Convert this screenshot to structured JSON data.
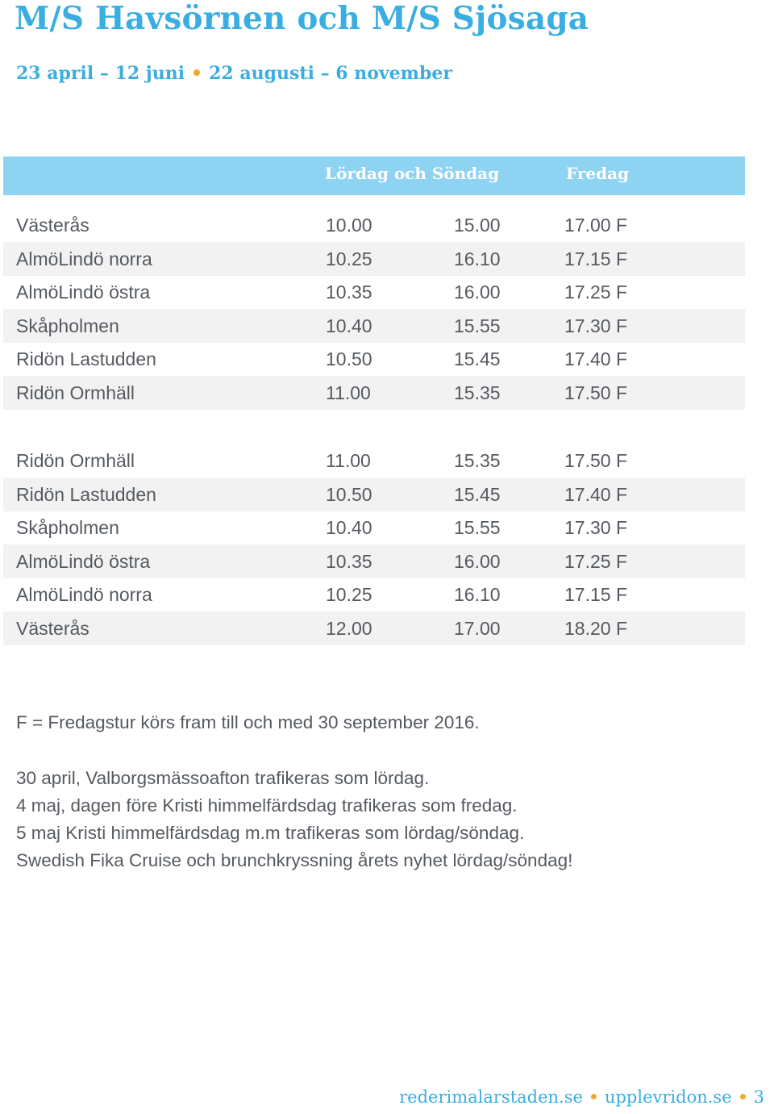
{
  "title": "M/S Havsörnen och M/S Sjösaga",
  "periods": [
    "23 april – 12 juni",
    "22 augusti – 6 november"
  ],
  "table": {
    "headers": {
      "weekend": "Lördag och Söndag",
      "friday": "Fredag"
    },
    "outbound": [
      {
        "stop": "Västerås",
        "t1": "10.00",
        "t2": "15.00",
        "t3": "17.00 F"
      },
      {
        "stop": "AlmöLindö norra",
        "t1": "10.25",
        "t2": "16.10",
        "t3": "17.15 F"
      },
      {
        "stop": "AlmöLindö östra",
        "t1": "10.35",
        "t2": "16.00",
        "t3": "17.25 F"
      },
      {
        "stop": "Skåpholmen",
        "t1": "10.40",
        "t2": "15.55",
        "t3": "17.30 F"
      },
      {
        "stop": "Ridön Lastudden",
        "t1": "10.50",
        "t2": "15.45",
        "t3": "17.40 F"
      },
      {
        "stop": "Ridön Ormhäll",
        "t1": "11.00",
        "t2": "15.35",
        "t3": "17.50 F"
      }
    ],
    "return": [
      {
        "stop": "Ridön Ormhäll",
        "t1": "11.00",
        "t2": "15.35",
        "t3": "17.50 F"
      },
      {
        "stop": "Ridön Lastudden",
        "t1": "10.50",
        "t2": "15.45",
        "t3": "17.40 F"
      },
      {
        "stop": "Skåpholmen",
        "t1": "10.40",
        "t2": "15.55",
        "t3": "17.30 F"
      },
      {
        "stop": "AlmöLindö östra",
        "t1": "10.35",
        "t2": "16.00",
        "t3": "17.25 F"
      },
      {
        "stop": "AlmöLindö norra",
        "t1": "10.25",
        "t2": "16.10",
        "t3": "17.15 F"
      },
      {
        "stop": "Västerås",
        "t1": "12.00",
        "t2": "17.00",
        "t3": "18.20 F"
      }
    ]
  },
  "notes": {
    "footnote": "F = Fredagstur körs fram till och med 30 september 2016.",
    "lines": [
      "30 april, Valborgsmässoafton trafikeras som lördag.",
      "4 maj, dagen före Kristi himmelfärdsdag trafikeras som fredag.",
      "5 maj Kristi himmelfärdsdag m.m trafikeras som lördag/söndag.",
      "Swedish Fika Cruise och brunchkryssning årets nyhet lördag/söndag!"
    ]
  },
  "footer": {
    "link1": "rederimalarstaden.se",
    "link2": "upplevridon.se",
    "page_number": "3"
  },
  "colors": {
    "accent": "#3aaee0",
    "header_band": "#8fd3f3",
    "bullet": "#f0a830",
    "row_shade": "#f2f2f2",
    "text": "#555a60"
  }
}
